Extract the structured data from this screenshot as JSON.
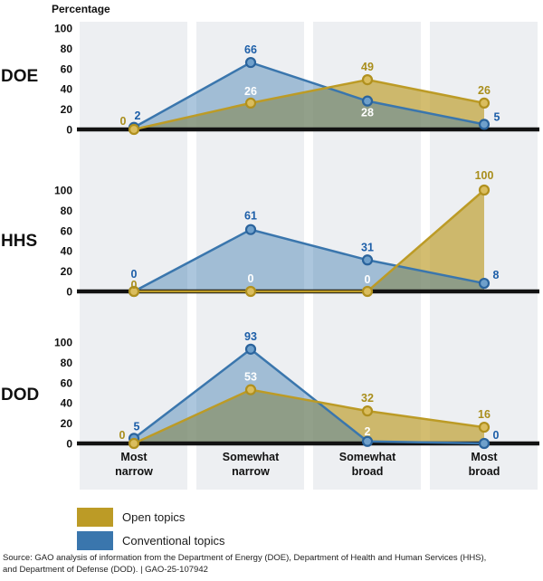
{
  "y_axis_title": "Percentage",
  "categories": [
    "Most narrow",
    "Somewhat narrow",
    "Somewhat broad",
    "Most broad"
  ],
  "legend": [
    {
      "label": "Open topics",
      "series": "open"
    },
    {
      "label": "Conventional topics",
      "series": "conventional"
    }
  ],
  "colors": {
    "open": "#BC9B26",
    "open_label": "#A98E1C",
    "open_marker_fill": "#DABD5E",
    "open_fill_opacity": 0.66,
    "conventional": "#3A76AD",
    "conventional_label": "#1C5EA8",
    "conventional_marker_fill": "#6FA0CB",
    "conventional_fill_opacity": 0.42,
    "band": "#EDEFF2",
    "axis": "#121212",
    "value_label_light": "#FFFFFF"
  },
  "source_note": [
    "Source: GAO analysis of information from the Department of Energy (DOE), Department of Health and Human Services (HHS),",
    "and Department of Defense (DOD).  |  GAO-25-107942"
  ],
  "chart_data": [
    {
      "type": "area",
      "agency": "DOE",
      "categories": [
        "Most narrow",
        "Somewhat narrow",
        "Somewhat broad",
        "Most broad"
      ],
      "ylim": [
        0,
        100
      ],
      "yticks": [
        0,
        20,
        40,
        60,
        80,
        100
      ],
      "series": [
        {
          "name": "Open topics",
          "key": "open",
          "values": [
            0,
            26,
            49,
            26
          ],
          "labels": [
            {
              "dx": -12,
              "dy": -5
            },
            {
              "dy": -9,
              "white": true
            },
            {
              "dy": -10
            },
            {
              "dy": -10
            }
          ]
        },
        {
          "name": "Conventional topics",
          "key": "conventional",
          "values": [
            2,
            66,
            28,
            5
          ],
          "labels": [
            {
              "dx": 4,
              "dy": -9
            },
            {
              "dy": -10
            },
            {
              "dy": 17,
              "white": true
            },
            {
              "dx": 14,
              "dy": -4
            }
          ]
        }
      ]
    },
    {
      "type": "area",
      "agency": "HHS",
      "categories": [
        "Most narrow",
        "Somewhat narrow",
        "Somewhat broad",
        "Most broad"
      ],
      "ylim": [
        0,
        100
      ],
      "yticks": [
        0,
        20,
        40,
        60,
        80,
        100
      ],
      "series": [
        {
          "name": "Open topics",
          "key": "open",
          "values": [
            0,
            0,
            0,
            100
          ],
          "labels": [
            {
              "dy": -3
            },
            {
              "dy": -10,
              "white": true
            },
            {
              "dy": -9,
              "white": true
            },
            {
              "dy": -12
            }
          ]
        },
        {
          "name": "Conventional topics",
          "key": "conventional",
          "values": [
            0,
            61,
            31,
            8
          ],
          "labels": [
            {
              "dy": -15
            },
            {
              "dy": -11
            },
            {
              "dy": -10
            },
            {
              "dx": 13,
              "dy": -5
            }
          ]
        }
      ]
    },
    {
      "type": "area",
      "agency": "DOD",
      "categories": [
        "Most narrow",
        "Somewhat narrow",
        "Somewhat broad",
        "Most broad"
      ],
      "ylim": [
        0,
        100
      ],
      "yticks": [
        0,
        20,
        40,
        60,
        80,
        100
      ],
      "series": [
        {
          "name": "Open topics",
          "key": "open",
          "values": [
            0,
            53,
            32,
            16
          ],
          "labels": [
            {
              "dx": -13,
              "dy": -5
            },
            {
              "dy": -10,
              "white": true
            },
            {
              "dy": -10
            },
            {
              "dy": -10
            }
          ]
        },
        {
          "name": "Conventional topics",
          "key": "conventional",
          "values": [
            5,
            93,
            2,
            0
          ],
          "labels": [
            {
              "dx": 3,
              "dy": -9
            },
            {
              "dy": -10
            },
            {
              "dy": -7,
              "white": true
            },
            {
              "dx": 13,
              "dy": -5
            }
          ]
        }
      ]
    }
  ]
}
